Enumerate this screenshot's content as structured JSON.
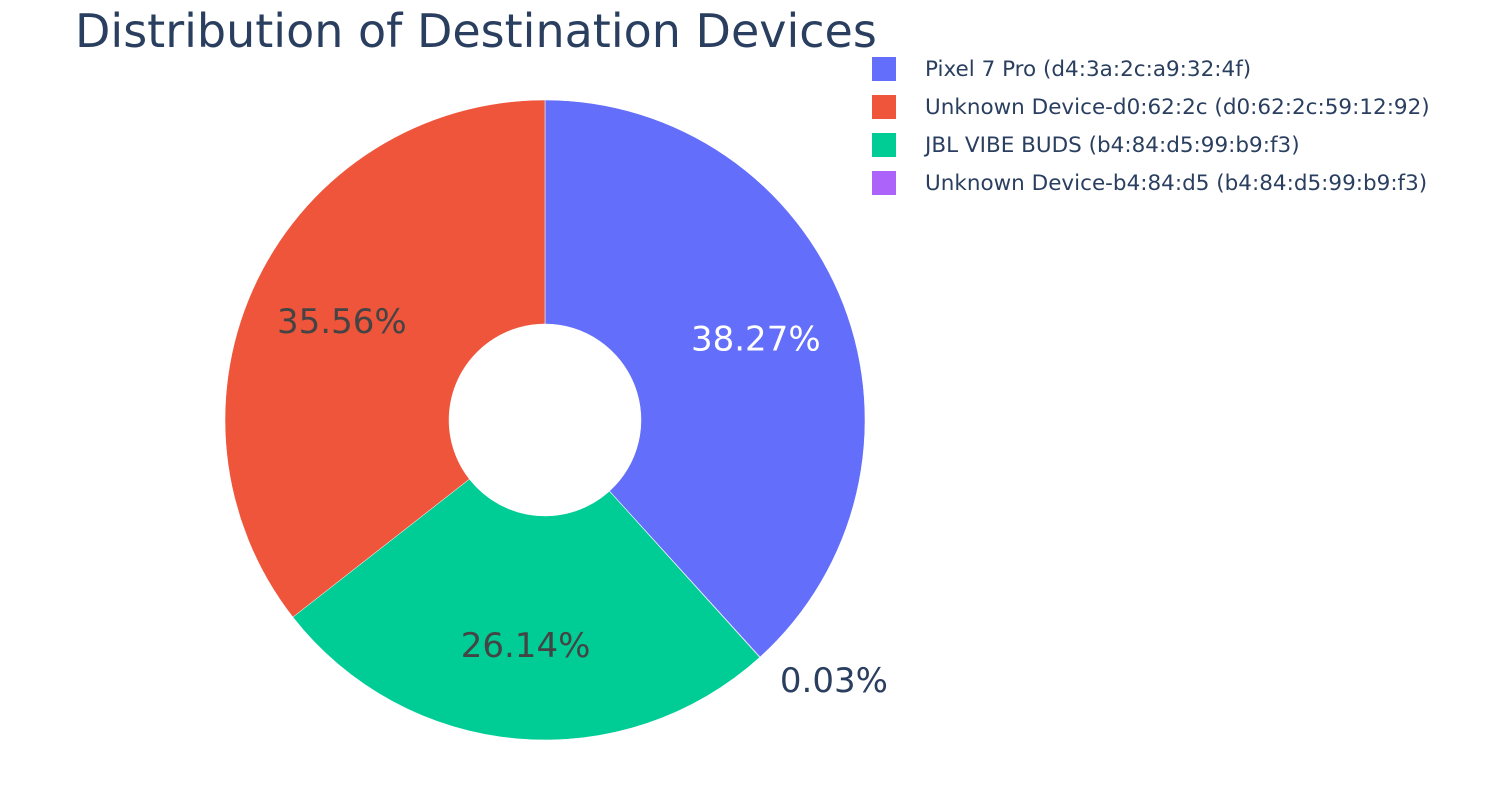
{
  "chart_data": {
    "type": "pie",
    "title": "Distribution of Destination Devices",
    "hole": 0.3,
    "direction": "clockwise",
    "start_angle_deg": 90,
    "slices": [
      {
        "label": "Pixel 7 Pro (d4:3a:2c:a9:32:4f)",
        "value": 38.27,
        "text": "38.27%",
        "color": "#636efa",
        "text_color": "#ffffff"
      },
      {
        "label": "Unknown Device-b4:84:d5 (b4:84:d5:99:b9:f3)",
        "value": 0.03,
        "text": "0.03%",
        "color": "#ab63fa",
        "text_color": "#2a3f5f"
      },
      {
        "label": "JBL VIBE BUDS (b4:84:d5:99:b9:f3)",
        "value": 26.14,
        "text": "26.14%",
        "color": "#00cc96",
        "text_color": "#444444"
      },
      {
        "label": "Unknown Device-d0:62:2c (d0:62:2c:59:12:92)",
        "value": 35.56,
        "text": "35.56%",
        "color": "#ef553b",
        "text_color": "#444444"
      }
    ],
    "legend": [
      {
        "label": "Pixel 7 Pro (d4:3a:2c:a9:32:4f)",
        "color": "#636efa"
      },
      {
        "label": "Unknown Device-d0:62:2c (d0:62:2c:59:12:92)",
        "color": "#ef553b"
      },
      {
        "label": "JBL VIBE BUDS (b4:84:d5:99:b9:f3)",
        "color": "#00cc96"
      },
      {
        "label": "Unknown Device-b4:84:d5 (b4:84:d5:99:b9:f3)",
        "color": "#ab63fa"
      }
    ],
    "legend_position": "top-right"
  }
}
